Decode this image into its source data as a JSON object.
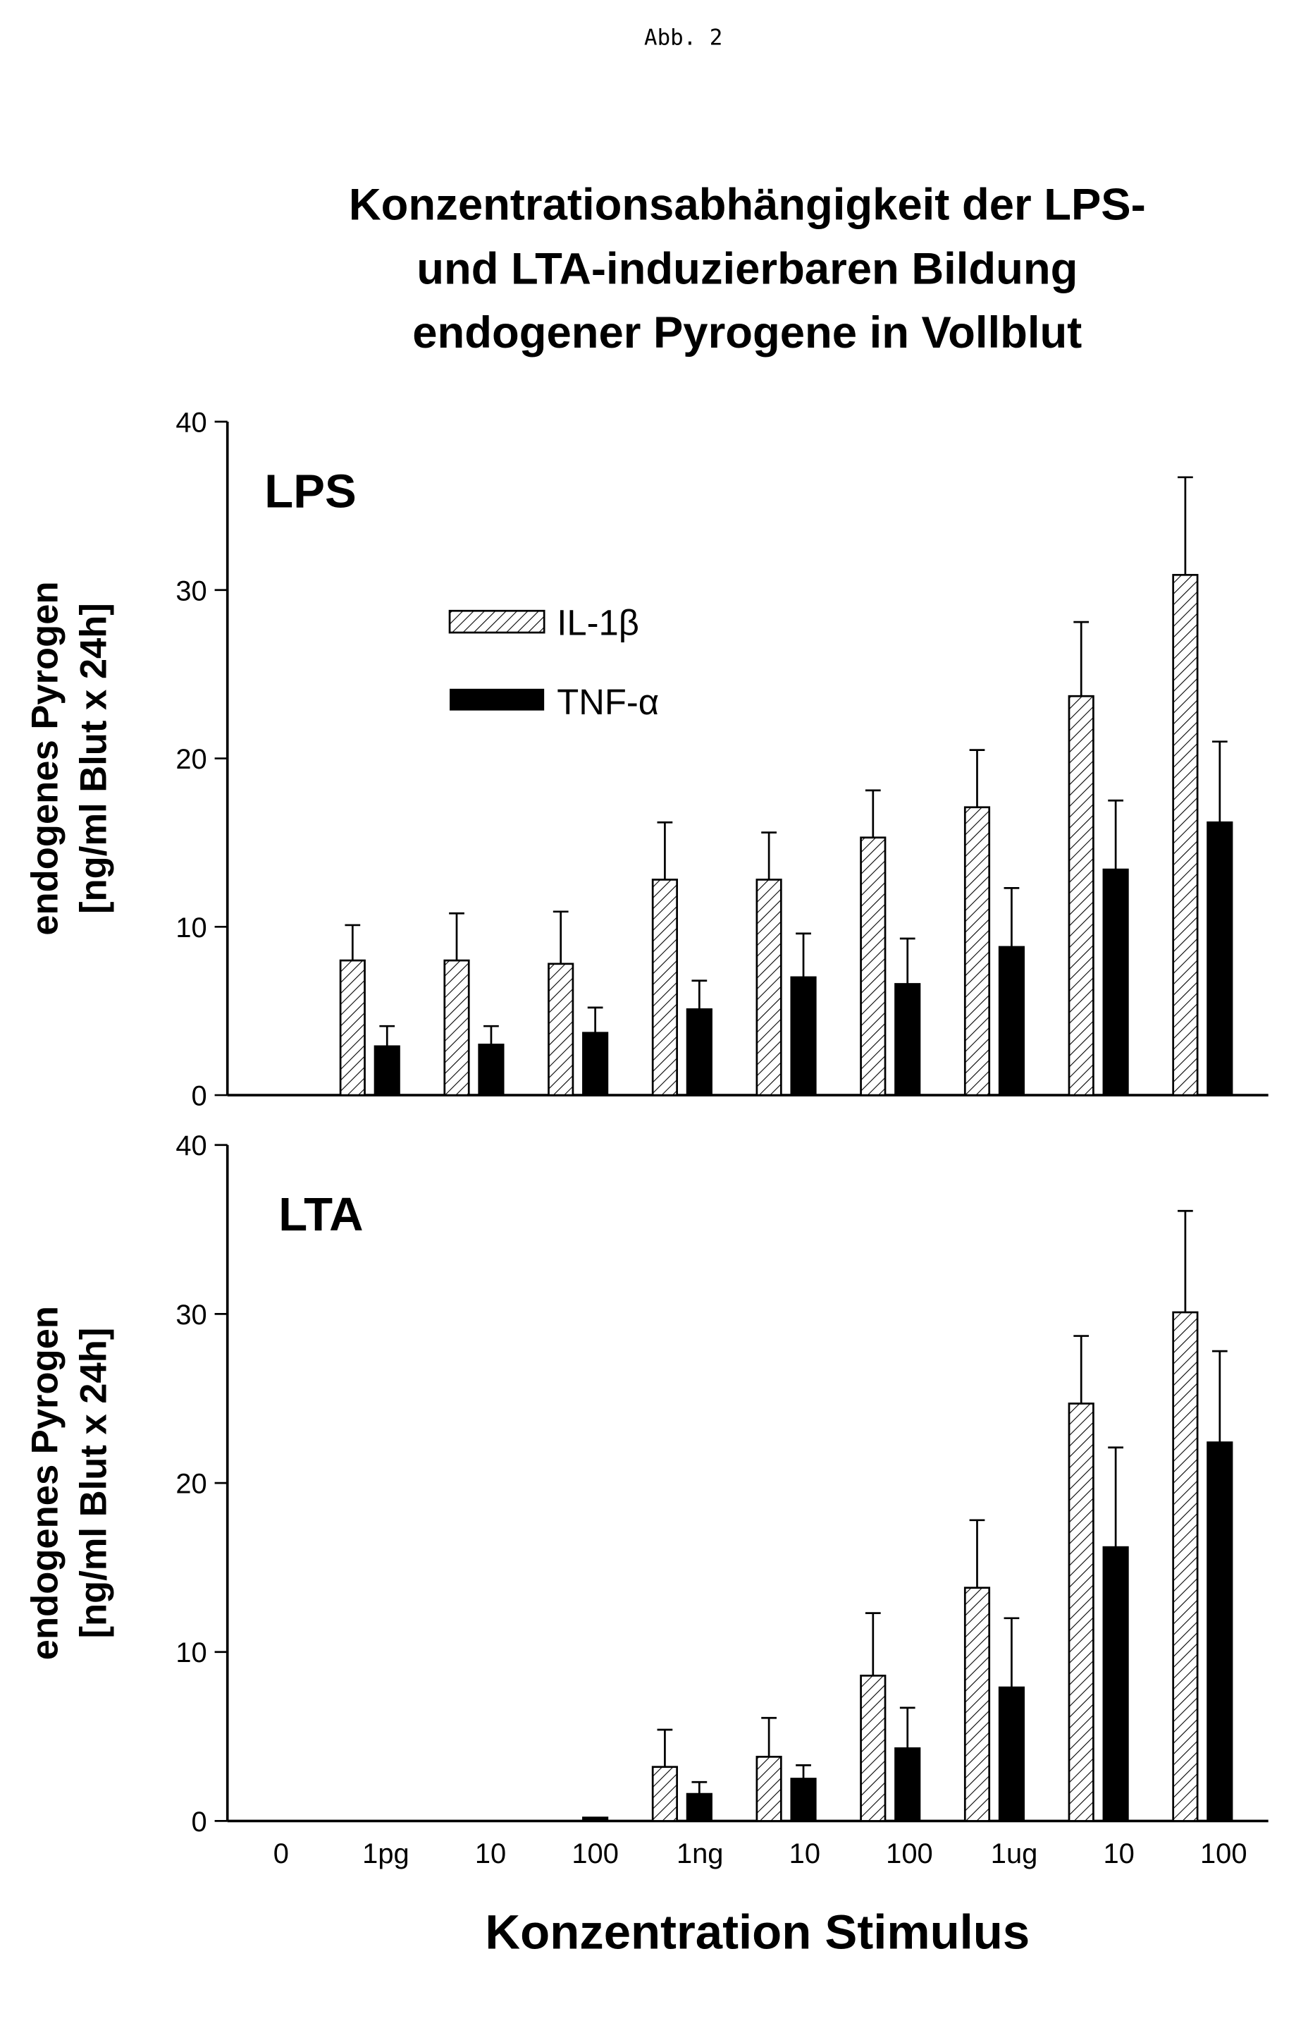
{
  "header": "Abb. 2",
  "title_lines": [
    "Konzentrationsabhängigkeit der LPS-",
    "und LTA-induzierbaren Bildung",
    "endogener Pyrogene in Vollblut"
  ],
  "chart_data": [
    {
      "type": "bar",
      "panel_label": "LPS",
      "categories": [
        "0",
        "1pg",
        "10",
        "100",
        "1ng",
        "10",
        "100",
        "1ug",
        "10",
        "100"
      ],
      "ylabel_lines": [
        "endogenes Pyrogen",
        "[ng/ml Blut x 24h]"
      ],
      "xlabel": "",
      "ylim": [
        0,
        40
      ],
      "yticks": [
        0,
        10,
        20,
        30,
        40
      ],
      "legend": "upper-left",
      "series": [
        {
          "name": "IL-1β",
          "pattern": "hatched",
          "values": [
            0,
            8.0,
            8.0,
            7.8,
            12.8,
            12.8,
            15.3,
            17.1,
            23.7,
            30.9
          ],
          "error_upper": [
            0,
            10.1,
            10.8,
            10.9,
            16.2,
            15.6,
            18.1,
            20.5,
            28.1,
            36.7
          ]
        },
        {
          "name": "TNF-α",
          "pattern": "solid",
          "color": "#000000",
          "values": [
            0,
            2.9,
            3.0,
            3.7,
            5.1,
            7.0,
            6.6,
            8.8,
            13.4,
            16.2
          ],
          "error_upper": [
            0,
            4.1,
            4.1,
            5.2,
            6.8,
            9.6,
            9.3,
            12.3,
            17.5,
            21.0
          ]
        }
      ]
    },
    {
      "type": "bar",
      "panel_label": "LTA",
      "categories": [
        "0",
        "1pg",
        "10",
        "100",
        "1ng",
        "10",
        "100",
        "1ug",
        "10",
        "100"
      ],
      "ylabel_lines": [
        "endogenes Pyrogen",
        "[ng/ml Blut x 24h]"
      ],
      "xlabel": "Konzentration Stimulus",
      "ylim": [
        0,
        40
      ],
      "yticks": [
        0,
        10,
        20,
        30,
        40
      ],
      "series": [
        {
          "name": "IL-1β",
          "pattern": "hatched",
          "values": [
            0,
            0,
            0,
            0,
            3.2,
            3.8,
            8.6,
            13.8,
            24.7,
            30.1
          ],
          "error_upper": [
            0,
            0,
            0,
            0,
            5.4,
            6.1,
            12.3,
            17.8,
            28.7,
            36.1
          ]
        },
        {
          "name": "TNF-α",
          "pattern": "solid",
          "color": "#000000",
          "values": [
            0,
            0,
            0,
            0.2,
            1.6,
            2.5,
            4.3,
            7.9,
            16.2,
            22.4
          ],
          "error_upper": [
            0,
            0,
            0,
            0,
            2.3,
            3.3,
            6.7,
            12.0,
            22.1,
            27.8
          ]
        }
      ]
    }
  ]
}
